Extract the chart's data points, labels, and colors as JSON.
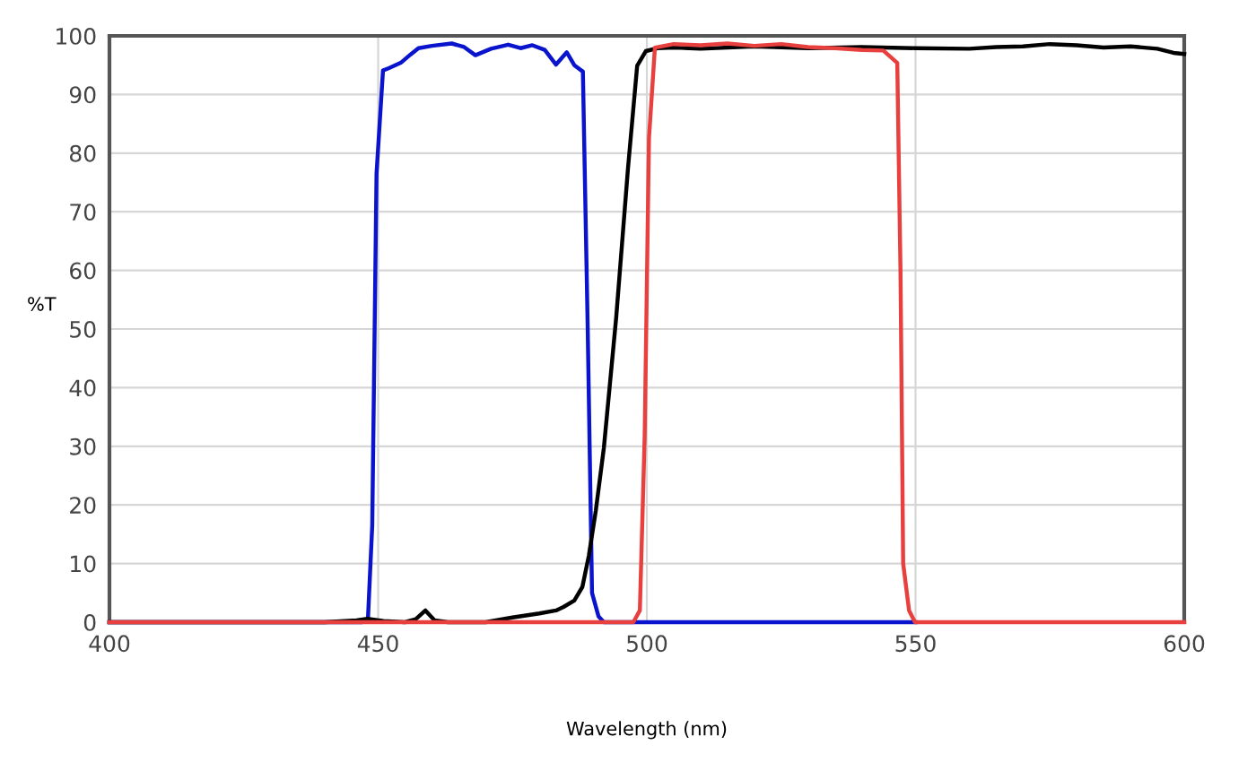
{
  "chart_data": {
    "type": "line",
    "xlabel": "Wavelength (nm)",
    "ylabel": "%T",
    "xlim": [
      400,
      600
    ],
    "xticks": [
      400,
      450,
      500,
      550,
      600
    ],
    "ylim": [
      0,
      100
    ],
    "yticks": [
      0,
      10,
      20,
      30,
      40,
      50,
      60,
      70,
      80,
      90,
      100
    ],
    "grid": true,
    "legend": false,
    "marker": "none",
    "line_style": "solid",
    "series": [
      {
        "color": "#0a14cc",
        "x": [
          400,
          447,
          448.1,
          448.9,
          449.7,
          450.9,
          452,
          454.2,
          456,
          457.5,
          460,
          463.7,
          466,
          468.1,
          471,
          474.2,
          476.5,
          478.7,
          481,
          483.1,
          485.1,
          486.5,
          488.1,
          489,
          489.8,
          491,
          492,
          520,
          550
        ],
        "values": [
          0,
          0,
          0.5,
          16.5,
          76.5,
          94.1,
          94.5,
          95.4,
          96.8,
          97.9,
          98.3,
          98.7,
          98.1,
          96.7,
          97.8,
          98.5,
          97.9,
          98.4,
          97.6,
          95.1,
          97.2,
          95,
          93.9,
          50,
          5,
          1,
          0,
          0,
          0
        ]
      },
      {
        "color": "#000000",
        "x": [
          400,
          440,
          446,
          448,
          451,
          455,
          457,
          458.8,
          460.5,
          463,
          470,
          475,
          480,
          483.1,
          484.5,
          486.5,
          488,
          489.2,
          490.5,
          492,
          494.3,
          496.5,
          498.2,
          499.8,
          502,
          505,
          510,
          520,
          530,
          540,
          550,
          560,
          565,
          570,
          575,
          580,
          585,
          590,
          595,
          598,
          600
        ],
        "values": [
          0,
          0,
          0.3,
          0.6,
          0.2,
          0,
          0.5,
          2,
          0.3,
          0,
          0,
          0.8,
          1.5,
          2,
          2.6,
          3.7,
          6,
          11.3,
          19,
          29.7,
          52,
          77.5,
          94.9,
          97.4,
          97.9,
          98,
          97.8,
          98.2,
          97.9,
          98.1,
          97.9,
          97.8,
          98.1,
          98.2,
          98.6,
          98.4,
          98,
          98.2,
          97.8,
          97.1,
          96.9
        ]
      },
      {
        "color": "#e8403f",
        "x": [
          400,
          497.5,
          498.7,
          499.6,
          500.4,
          501.5,
          505,
          510,
          515,
          520,
          525,
          530,
          535,
          540,
          544,
          546.6,
          547.2,
          547.7,
          548.8,
          549.9,
          600
        ],
        "values": [
          0,
          0,
          2,
          31.8,
          82.6,
          98,
          98.6,
          98.4,
          98.7,
          98.3,
          98.6,
          98.1,
          97.9,
          97.6,
          97.5,
          95.4,
          60,
          10,
          2,
          0,
          0
        ]
      }
    ]
  }
}
